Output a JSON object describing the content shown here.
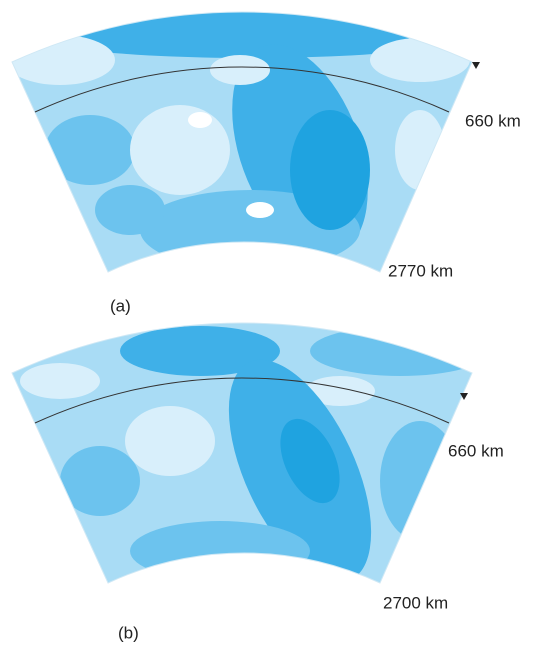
{
  "panels": [
    {
      "label": "(a)",
      "upper_depth": "660 km",
      "lower_depth": "2770 km"
    },
    {
      "label": "(b)",
      "upper_depth": "660 km",
      "lower_depth": "2700 km"
    }
  ]
}
